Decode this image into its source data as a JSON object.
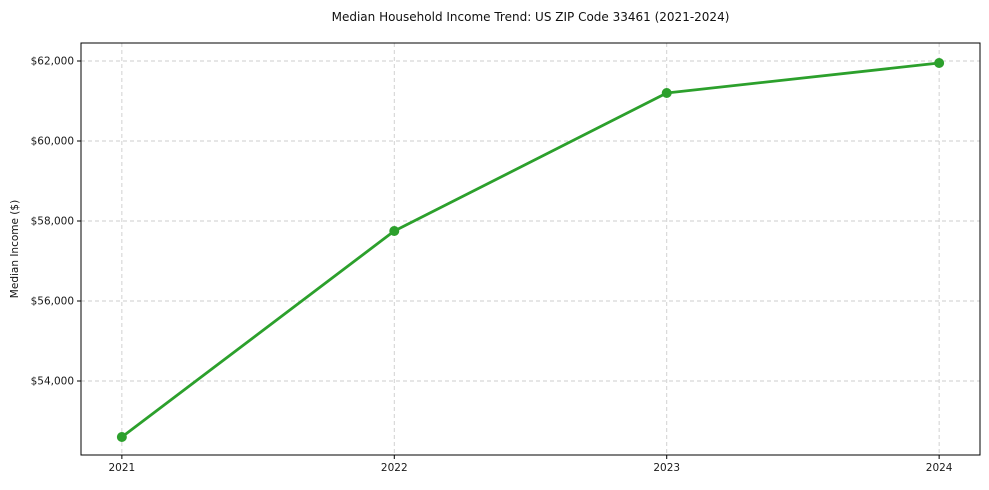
{
  "page": {
    "background": "#ffffff"
  },
  "chart_data": {
    "type": "line",
    "title": "Median Household Income Trend: US ZIP Code 33461 (2021-2024)",
    "xlabel": "",
    "ylabel": "Median Income ($)",
    "categories": [
      "2021",
      "2022",
      "2023",
      "2024"
    ],
    "series": [
      {
        "name": "Median Household Income",
        "values": [
          52600,
          57750,
          61200,
          61950
        ],
        "color": "#2ca02c",
        "marker": "circle"
      }
    ],
    "y_ticks": {
      "values": [
        54000,
        56000,
        58000,
        60000,
        62000
      ],
      "labels": [
        "$54,000",
        "$56,000",
        "$58,000",
        "$60,000",
        "$62,000"
      ]
    },
    "ylim": [
      52150,
      62450
    ],
    "xlim": [
      -0.15,
      3.15
    ],
    "grid": "on",
    "grid_style": "dashed",
    "grid_both_directions": true,
    "gridline_color": "#cccccc",
    "axis_color": "#000000",
    "text_color": "#1a1a1a",
    "legend": "none",
    "plot_background": "#ffffff"
  }
}
